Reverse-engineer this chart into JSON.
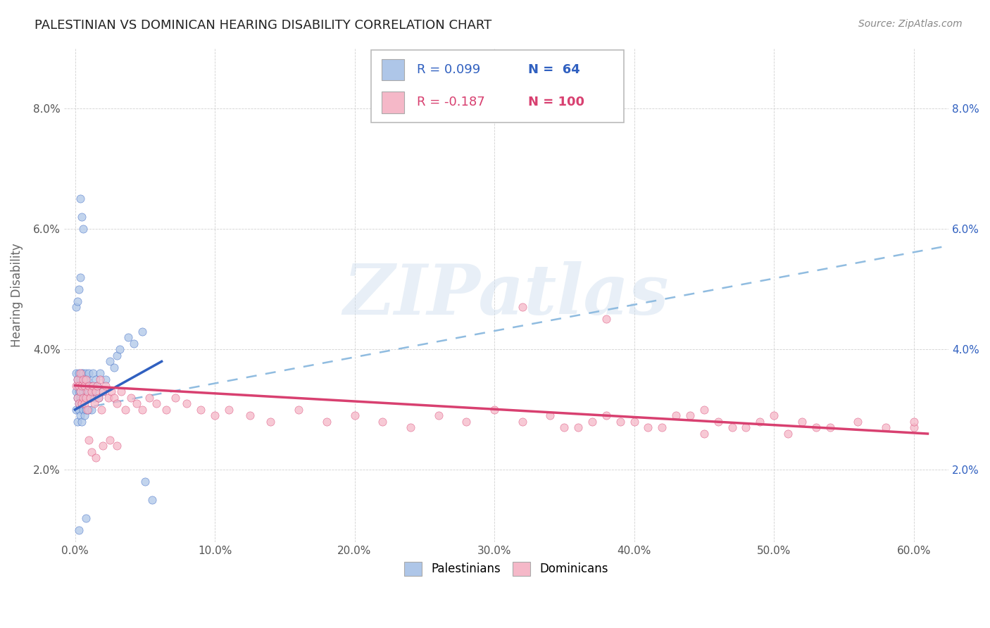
{
  "title": "PALESTINIAN VS DOMINICAN HEARING DISABILITY CORRELATION CHART",
  "source": "Source: ZipAtlas.com",
  "xlabel_ticks": [
    "0.0%",
    "10.0%",
    "20.0%",
    "30.0%",
    "40.0%",
    "50.0%",
    "60.0%"
  ],
  "xlabel_vals": [
    0.0,
    0.1,
    0.2,
    0.3,
    0.4,
    0.5,
    0.6
  ],
  "ylabel": "Hearing Disability",
  "ylabel_ticks": [
    "2.0%",
    "4.0%",
    "6.0%",
    "8.0%"
  ],
  "ylabel_vals": [
    0.02,
    0.04,
    0.06,
    0.08
  ],
  "xlim": [
    -0.008,
    0.625
  ],
  "ylim": [
    0.008,
    0.09
  ],
  "color_palestinian": "#aec6e8",
  "color_dominican": "#f5b8c8",
  "color_line_palestinian": "#3060c0",
  "color_line_dominican": "#d84070",
  "color_dashed_line": "#90bce0",
  "color_tick_right": "#3060c0",
  "watermark_text": "ZIPatlas",
  "legend_r1": "R = 0.099",
  "legend_n1": "N =  64",
  "legend_r2": "R = -0.187",
  "legend_n2": "N = 100",
  "pal_line_x": [
    0.0,
    0.062
  ],
  "pal_line_y": [
    0.03,
    0.038
  ],
  "dom_line_x": [
    0.0,
    0.61
  ],
  "dom_line_y": [
    0.034,
    0.026
  ],
  "dash_line_x": [
    0.0,
    0.62
  ],
  "dash_line_y": [
    0.03,
    0.057
  ]
}
